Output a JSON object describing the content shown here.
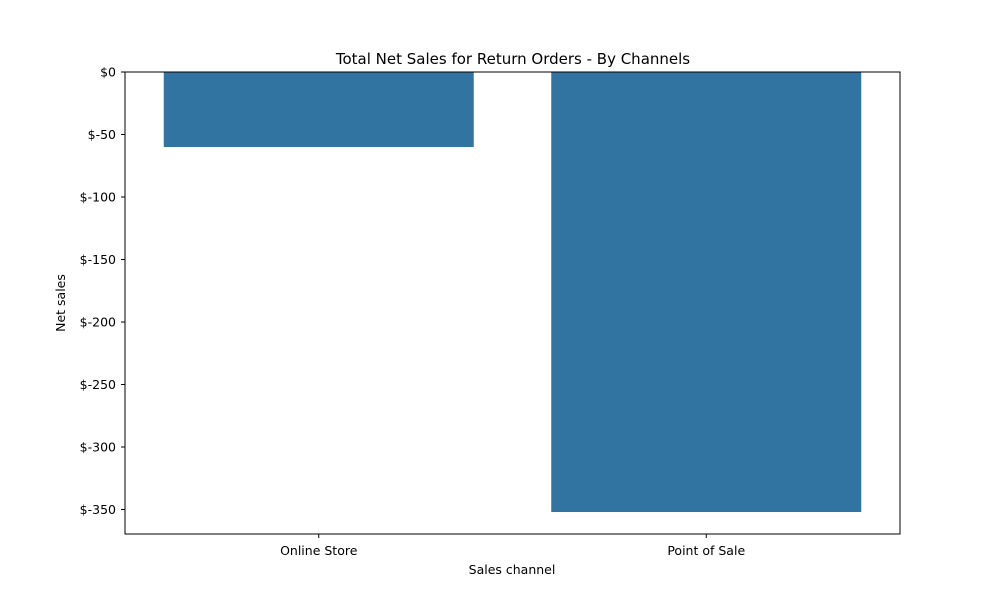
{
  "chart_data": {
    "type": "bar",
    "title": "Total Net Sales for Return Orders - By Channels",
    "xlabel": "Sales channel",
    "ylabel": "Net sales",
    "categories": [
      "Online Store",
      "Point of Sale"
    ],
    "values": [
      -60,
      -352
    ],
    "ylim": [
      -369.6,
      0
    ],
    "yticks": [
      0,
      -50,
      -100,
      -150,
      -200,
      -250,
      -300,
      -350
    ],
    "ytick_labels": [
      "$0",
      "$-50",
      "$-100",
      "$-150",
      "$-200",
      "$-250",
      "$-300",
      "$-350"
    ],
    "bar_color": "#3274a1",
    "grid": false,
    "legend": "none"
  }
}
